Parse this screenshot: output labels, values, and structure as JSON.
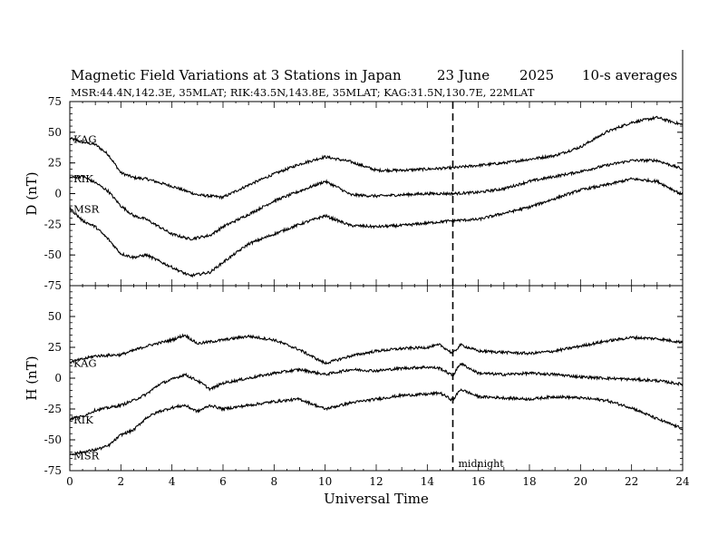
{
  "header": {
    "title": "Magnetic Field Variations at 3 Stations in Japan",
    "date": "23 June",
    "year": "2025",
    "averaging": "10-s averages",
    "subtitle": "MSR:44.4N,142.3E, 35MLAT;  RIK:43.5N,143.8E, 35MLAT;  KAG:31.5N,130.7E, 22MLAT"
  },
  "chart_data": {
    "type": "line",
    "xlabel": "Universal Time",
    "xlim": [
      0,
      24
    ],
    "x_ticks": [
      0,
      2,
      4,
      6,
      8,
      10,
      12,
      14,
      16,
      18,
      20,
      22,
      24
    ],
    "annotation": {
      "x": 15,
      "label": "midnight",
      "style": "dashed vertical line"
    },
    "panels": [
      {
        "ylabel": "D (nT)",
        "ylim": [
          -75,
          75
        ],
        "y_ticks": [
          75,
          50,
          25,
          0,
          -25,
          -50,
          -75
        ],
        "series": [
          {
            "name": "KAG",
            "points": [
              [
                0,
                45
              ],
              [
                0.5,
                42
              ],
              [
                1,
                40
              ],
              [
                1.5,
                32
              ],
              [
                2,
                17
              ],
              [
                2.5,
                13
              ],
              [
                3,
                12
              ],
              [
                4,
                6
              ],
              [
                5,
                -1
              ],
              [
                6,
                -3
              ],
              [
                7,
                7
              ],
              [
                8,
                16
              ],
              [
                9,
                24
              ],
              [
                10,
                30
              ],
              [
                11,
                26
              ],
              [
                12,
                19
              ],
              [
                13,
                19
              ],
              [
                14,
                20
              ],
              [
                15,
                21
              ],
              [
                16,
                23
              ],
              [
                17,
                25
              ],
              [
                18,
                28
              ],
              [
                19,
                31
              ],
              [
                20,
                38
              ],
              [
                21,
                50
              ],
              [
                22,
                58
              ],
              [
                23,
                62
              ],
              [
                24,
                56
              ]
            ]
          },
          {
            "name": "RIK",
            "points": [
              [
                0,
                13
              ],
              [
                0.5,
                14
              ],
              [
                1,
                9
              ],
              [
                1.5,
                2
              ],
              [
                2,
                -10
              ],
              [
                2.5,
                -18
              ],
              [
                3,
                -21
              ],
              [
                4,
                -33
              ],
              [
                4.7,
                -37
              ],
              [
                5.5,
                -34
              ],
              [
                6,
                -27
              ],
              [
                7,
                -17
              ],
              [
                8,
                -6
              ],
              [
                9,
                2
              ],
              [
                10,
                10
              ],
              [
                10.5,
                5
              ],
              [
                11,
                -1
              ],
              [
                12,
                -2
              ],
              [
                13,
                -1
              ],
              [
                14,
                0
              ],
              [
                15,
                0
              ],
              [
                16,
                1
              ],
              [
                17,
                4
              ],
              [
                18,
                10
              ],
              [
                19,
                14
              ],
              [
                20,
                18
              ],
              [
                21,
                23
              ],
              [
                22,
                27
              ],
              [
                23,
                27
              ],
              [
                24,
                20
              ]
            ]
          },
          {
            "name": "MSR",
            "points": [
              [
                0,
                -12
              ],
              [
                0.5,
                -22
              ],
              [
                1,
                -27
              ],
              [
                1.5,
                -37
              ],
              [
                2,
                -49
              ],
              [
                2.5,
                -52
              ],
              [
                3,
                -50
              ],
              [
                4,
                -60
              ],
              [
                4.7,
                -67
              ],
              [
                5.5,
                -64
              ],
              [
                6,
                -56
              ],
              [
                7,
                -41
              ],
              [
                8,
                -33
              ],
              [
                9,
                -25
              ],
              [
                10,
                -18
              ],
              [
                11,
                -26
              ],
              [
                12,
                -27
              ],
              [
                13,
                -26
              ],
              [
                14,
                -24
              ],
              [
                15,
                -22
              ],
              [
                16,
                -21
              ],
              [
                17,
                -16
              ],
              [
                18,
                -11
              ],
              [
                19,
                -4
              ],
              [
                20,
                3
              ],
              [
                21,
                7
              ],
              [
                22,
                12
              ],
              [
                23,
                10
              ],
              [
                24,
                -1
              ]
            ]
          }
        ]
      },
      {
        "ylabel": "H (nT)",
        "ylim": [
          -75,
          75
        ],
        "y_ticks": [
          50,
          25,
          0,
          -25,
          -50,
          -75
        ],
        "series": [
          {
            "name": "KAG",
            "points": [
              [
                0,
                13
              ],
              [
                1,
                18
              ],
              [
                2,
                19
              ],
              [
                3,
                26
              ],
              [
                4,
                31
              ],
              [
                4.5,
                35
              ],
              [
                5,
                28
              ],
              [
                6,
                31
              ],
              [
                7,
                34
              ],
              [
                8,
                31
              ],
              [
                9,
                23
              ],
              [
                10,
                12
              ],
              [
                11,
                18
              ],
              [
                12,
                22
              ],
              [
                13,
                24
              ],
              [
                14,
                25
              ],
              [
                14.5,
                27
              ],
              [
                15,
                20
              ],
              [
                15.3,
                27
              ],
              [
                16,
                22
              ],
              [
                17,
                21
              ],
              [
                18,
                20
              ],
              [
                19,
                22
              ],
              [
                20,
                26
              ],
              [
                21,
                30
              ],
              [
                22,
                33
              ],
              [
                23,
                32
              ],
              [
                24,
                29
              ]
            ]
          },
          {
            "name": "RIK",
            "points": [
              [
                0,
                -33
              ],
              [
                0.5,
                -31
              ],
              [
                1,
                -26
              ],
              [
                1.5,
                -24
              ],
              [
                2,
                -22
              ],
              [
                2.5,
                -18
              ],
              [
                3,
                -13
              ],
              [
                3.5,
                -5
              ],
              [
                4,
                -1
              ],
              [
                4.5,
                3
              ],
              [
                5,
                -2
              ],
              [
                5.5,
                -9
              ],
              [
                6,
                -4
              ],
              [
                7,
                0
              ],
              [
                8,
                4
              ],
              [
                9,
                7
              ],
              [
                10,
                3
              ],
              [
                11,
                7
              ],
              [
                12,
                6
              ],
              [
                13,
                8
              ],
              [
                14,
                9
              ],
              [
                14.5,
                8
              ],
              [
                15,
                2
              ],
              [
                15.3,
                12
              ],
              [
                16,
                4
              ],
              [
                17,
                3
              ],
              [
                18,
                4
              ],
              [
                19,
                3
              ],
              [
                20,
                1
              ],
              [
                21,
                0
              ],
              [
                22,
                -1
              ],
              [
                23,
                -2
              ],
              [
                24,
                -5
              ]
            ]
          },
          {
            "name": "MSR",
            "points": [
              [
                0,
                -62
              ],
              [
                0.5,
                -60
              ],
              [
                1,
                -58
              ],
              [
                1.5,
                -55
              ],
              [
                2,
                -46
              ],
              [
                2.5,
                -42
              ],
              [
                3,
                -32
              ],
              [
                3.5,
                -27
              ],
              [
                4,
                -24
              ],
              [
                4.5,
                -22
              ],
              [
                5,
                -27
              ],
              [
                5.5,
                -22
              ],
              [
                6,
                -25
              ],
              [
                7,
                -22
              ],
              [
                8,
                -19
              ],
              [
                9,
                -17
              ],
              [
                10,
                -25
              ],
              [
                11,
                -20
              ],
              [
                12,
                -17
              ],
              [
                13,
                -14
              ],
              [
                14,
                -13
              ],
              [
                14.5,
                -12
              ],
              [
                15,
                -18
              ],
              [
                15.3,
                -9
              ],
              [
                16,
                -15
              ],
              [
                17,
                -16
              ],
              [
                18,
                -17
              ],
              [
                19,
                -15
              ],
              [
                20,
                -16
              ],
              [
                21,
                -18
              ],
              [
                22,
                -24
              ],
              [
                23,
                -33
              ],
              [
                24,
                -41
              ]
            ]
          }
        ]
      }
    ]
  }
}
